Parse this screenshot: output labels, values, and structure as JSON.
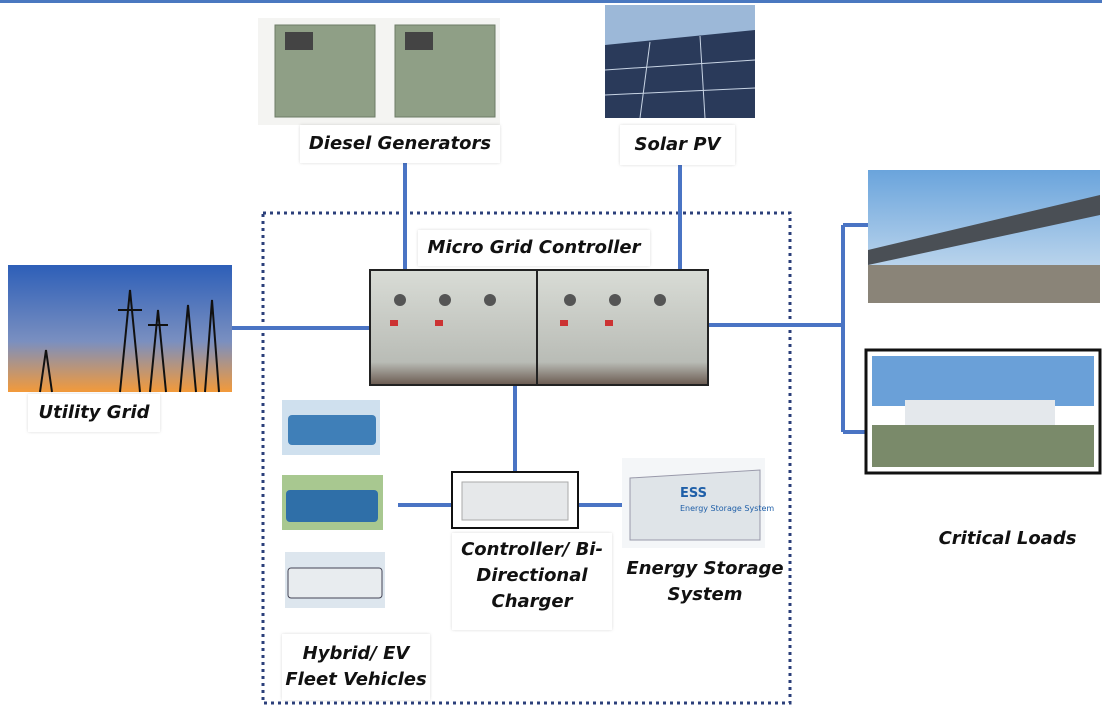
{
  "title": "Micro Grid Controller",
  "nodes": [
    {
      "label": "Diesel Generators"
    },
    {
      "label": "Solar PV"
    },
    {
      "label": "Utility Grid"
    },
    {
      "label": "Critical Loads"
    },
    {
      "label": "Controller/ Bi-Directional Charger"
    },
    {
      "label": "Energy Storage System",
      "image_text": [
        "ESS",
        "Energy Storage System"
      ]
    },
    {
      "label": "Hybrid/ EV Fleet Vehicles"
    }
  ]
}
